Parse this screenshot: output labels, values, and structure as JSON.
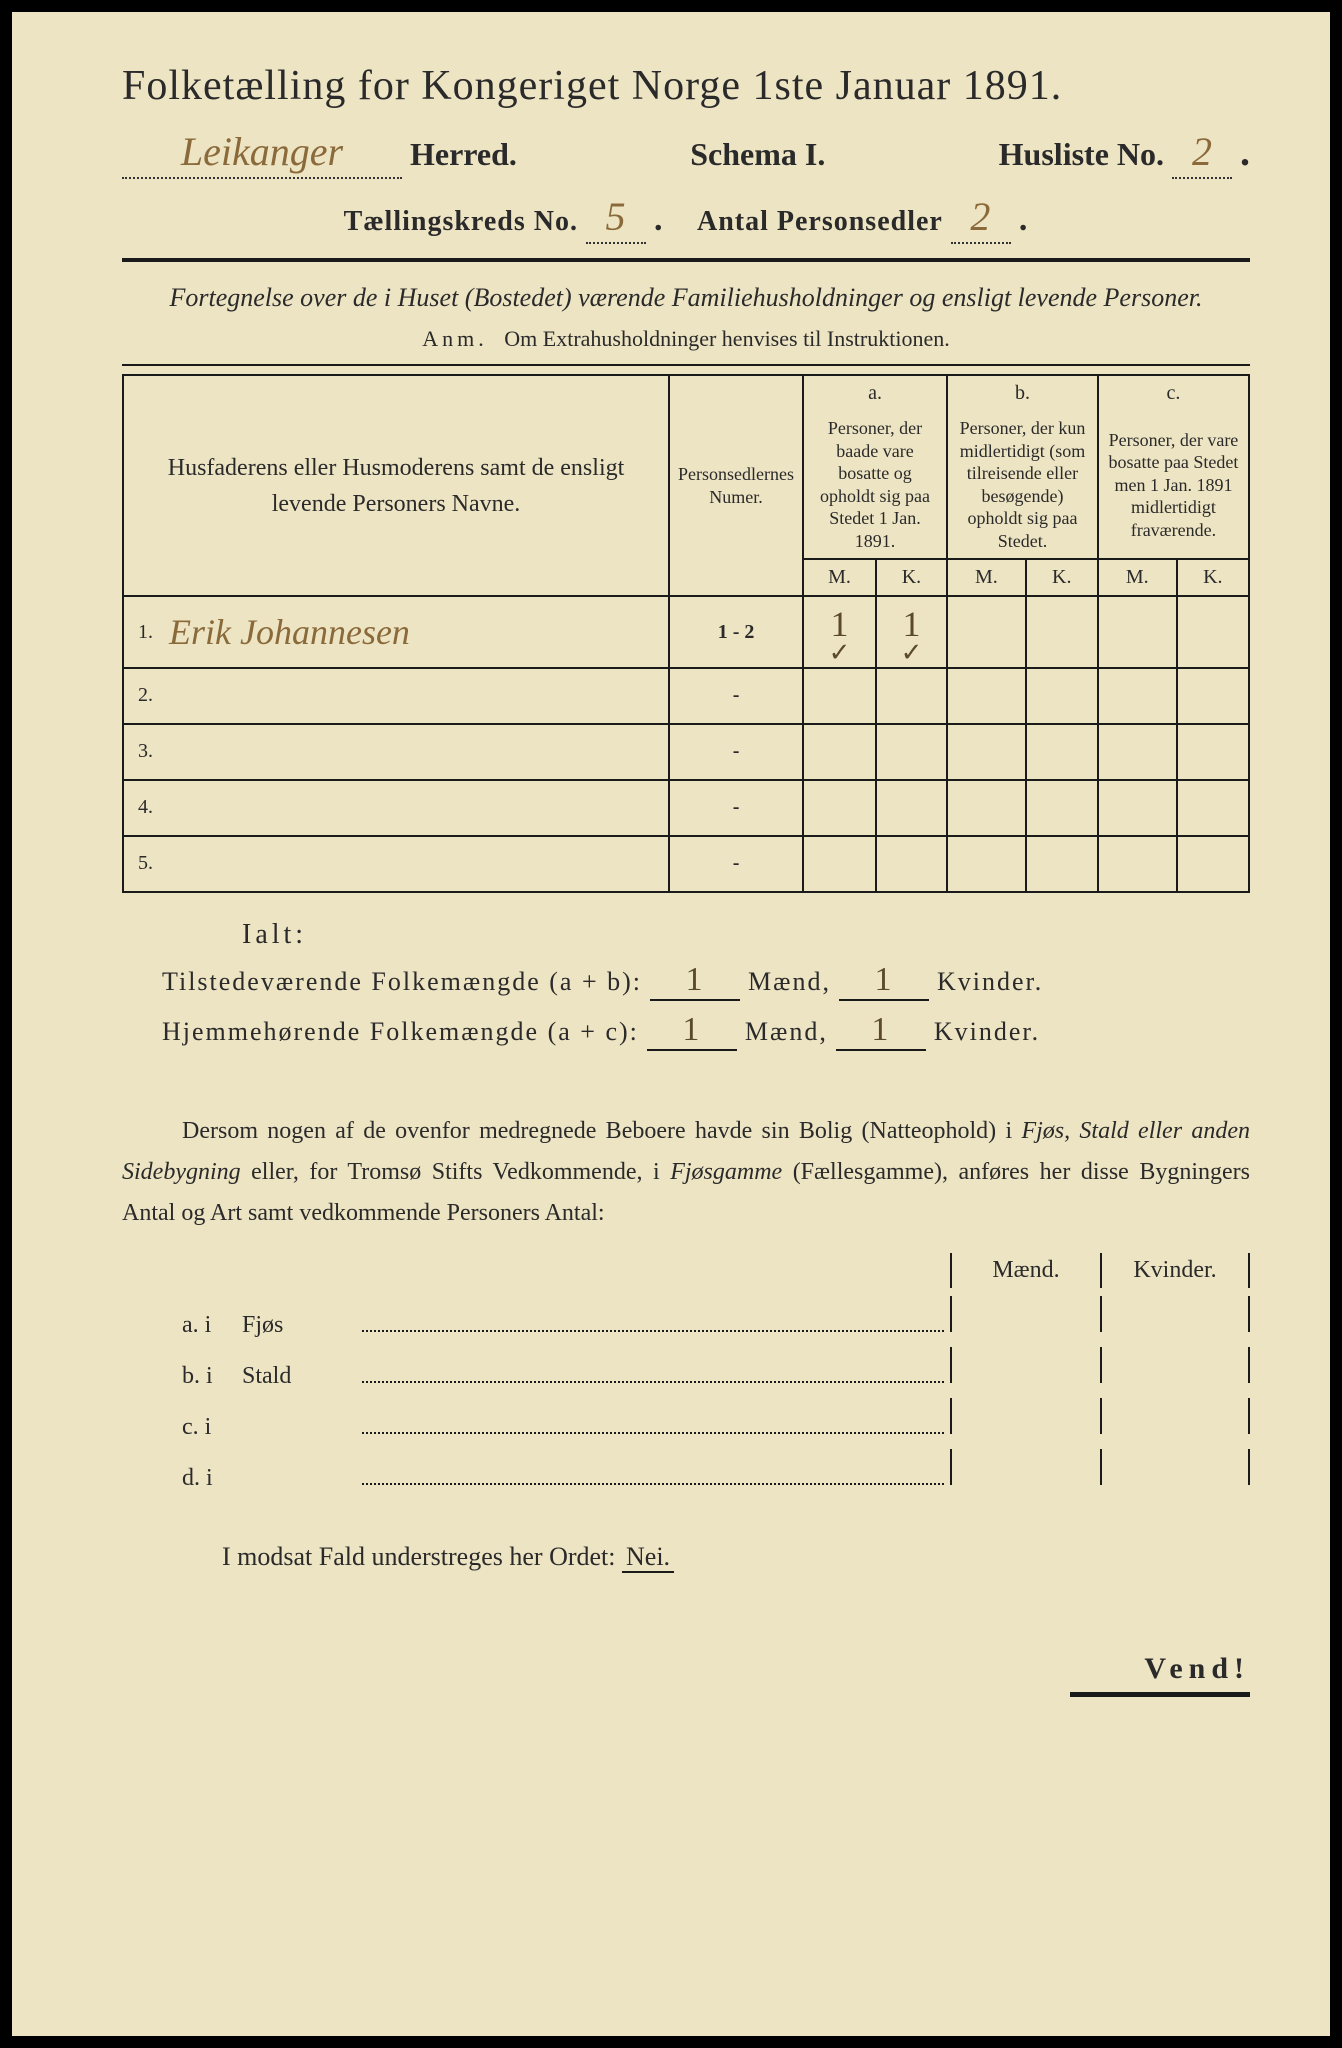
{
  "page_background": "#ede4c3",
  "text_color": "#2a2a2a",
  "handwriting_color": "#8a6a3a",
  "title": "Folketælling for Kongeriget Norge 1ste Januar 1891.",
  "herred_handwritten": "Leikanger",
  "herred_label": "Herred.",
  "schema_label": "Schema I.",
  "husliste_label": "Husliste No.",
  "husliste_no": "2",
  "line3_left": "Tællingskreds No.",
  "kreds_no": "5",
  "line3_right": "Antal Personsedler",
  "personsedler_no": "2",
  "subtitle": "Fortegnelse over de i Huset (Bostedet) værende Familiehusholdninger og ensligt levende Personer.",
  "anm_prefix": "Anm.",
  "anm_text": "Om Extrahusholdninger henvises til Instruktionen.",
  "table": {
    "col1": "Husfaderens eller Husmoderens samt de ensligt levende Personers Navne.",
    "col2": "Personsedlernes Numer.",
    "abc": {
      "a": "a.",
      "b": "b.",
      "c": "c."
    },
    "col_a": "Personer, der baade vare bosatte og opholdt sig paa Stedet 1 Jan. 1891.",
    "col_b": "Personer, der kun midlertidigt (som tilreisende eller besøgende) opholdt sig paa Stedet.",
    "col_c": "Personer, der vare bosatte paa Stedet men 1 Jan. 1891 midlertidigt fraværende.",
    "M": "M.",
    "K": "K.",
    "rows": [
      {
        "n": "1.",
        "name": "Erik Johannesen",
        "numer": "1 - 2",
        "aM": "1",
        "aK": "1",
        "aM2": "✓",
        "aK2": "✓"
      },
      {
        "n": "2.",
        "name": "",
        "numer": "-",
        "aM": "",
        "aK": ""
      },
      {
        "n": "3.",
        "name": "",
        "numer": "-",
        "aM": "",
        "aK": ""
      },
      {
        "n": "4.",
        "name": "",
        "numer": "-",
        "aM": "",
        "aK": ""
      },
      {
        "n": "5.",
        "name": "",
        "numer": "-",
        "aM": "",
        "aK": ""
      }
    ]
  },
  "ialt": "Ialt:",
  "sum1_label": "Tilstedeværende Folkemængde (a + b):",
  "sum2_label": "Hjemmehørende Folkemængde (a + c):",
  "sum_maend": "Mænd,",
  "sum_kvinder": "Kvinder.",
  "sum1_m": "1",
  "sum1_k": "1",
  "sum2_m": "1",
  "sum2_k": "1",
  "para_text_1": "Dersom nogen af de ovenfor medregnede Beboere havde sin Bolig (Natteophold) i ",
  "para_em_1": "Fjøs, Stald eller anden Sidebygning",
  "para_text_2": " eller, for Tromsø Stifts Vedkommende, i ",
  "para_em_2": "Fjøsgamme",
  "para_text_3": " (Fællesgamme), anføres her disse Bygningers Antal og Art samt vedkommende Personers Antal:",
  "mk_m": "Mænd.",
  "mk_k": "Kvinder.",
  "buildings": [
    {
      "lbl": "a.  i",
      "typ": "Fjøs"
    },
    {
      "lbl": "b.  i",
      "typ": "Stald"
    },
    {
      "lbl": "c.  i",
      "typ": ""
    },
    {
      "lbl": "d.  i",
      "typ": ""
    }
  ],
  "nei_line_1": "I modsat Fald understreges her Ordet: ",
  "nei_word": "Nei.",
  "vend": "Vend!"
}
